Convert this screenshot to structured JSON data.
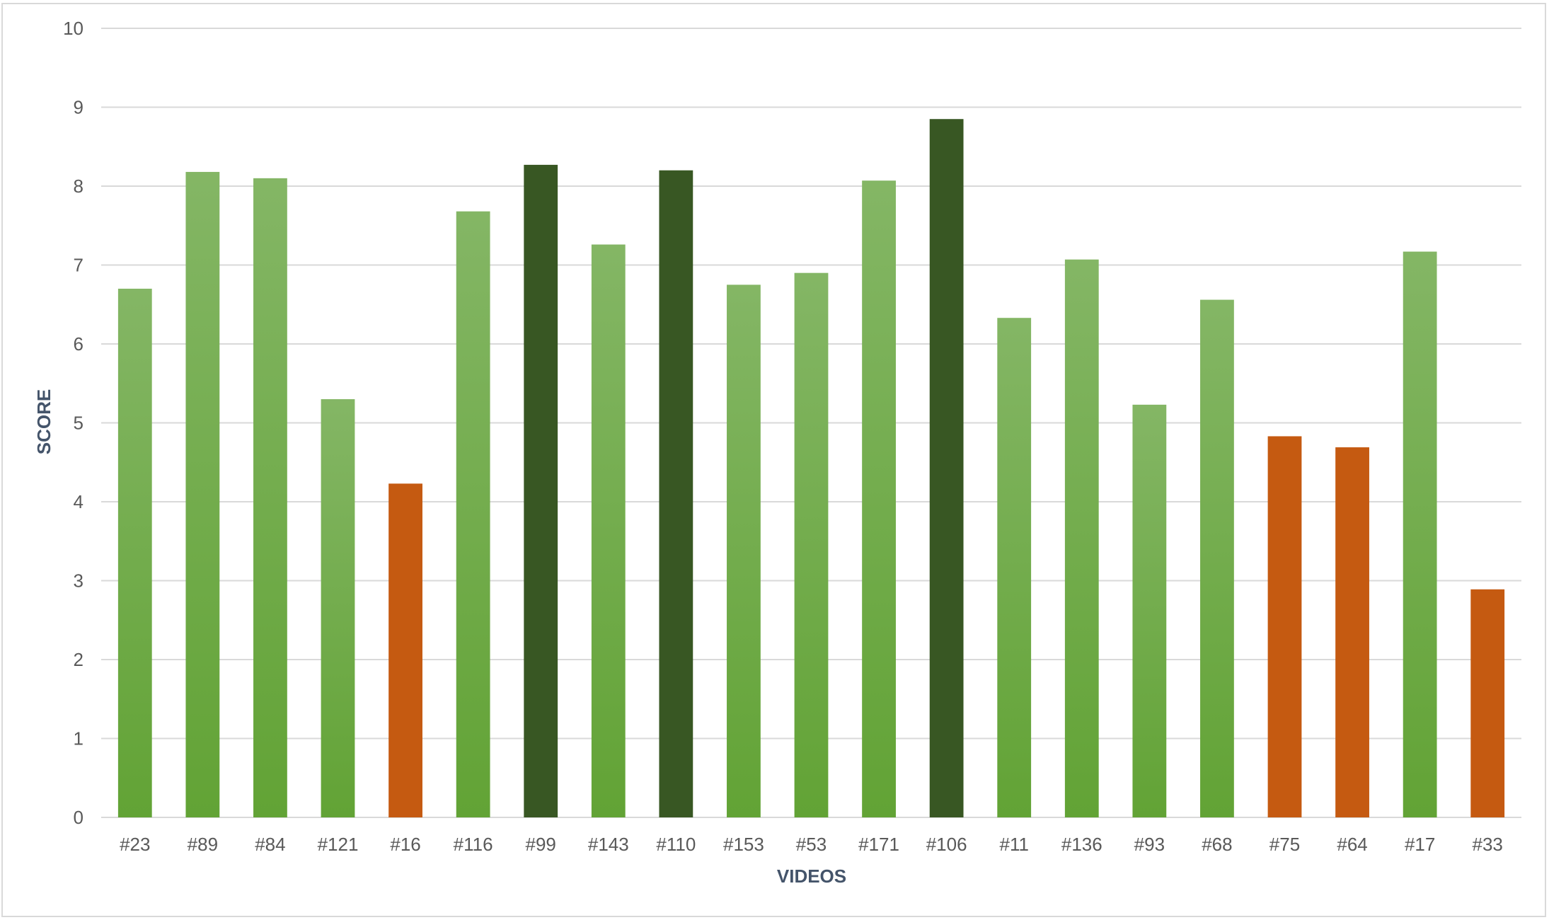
{
  "chart_data": {
    "type": "bar",
    "xlabel": "VIDEOS",
    "ylabel": "SCORE",
    "ylim": [
      0,
      10
    ],
    "yticks": [
      0,
      1,
      2,
      3,
      4,
      5,
      6,
      7,
      8,
      9,
      10
    ],
    "grid": true,
    "categories": [
      "#23",
      "#89",
      "#84",
      "#121",
      "#16",
      "#116",
      "#99",
      "#143",
      "#110",
      "#153",
      "#53",
      "#171",
      "#106",
      "#11",
      "#136",
      "#93",
      "#68",
      "#75",
      "#64",
      "#17",
      "#33"
    ],
    "values": [
      6.7,
      8.18,
      8.1,
      5.3,
      4.23,
      7.68,
      8.27,
      7.26,
      8.2,
      6.75,
      6.9,
      8.07,
      8.85,
      6.33,
      7.07,
      5.23,
      6.56,
      4.83,
      4.69,
      7.17,
      2.89
    ],
    "bar_groups": [
      "light",
      "light",
      "light",
      "light",
      "orange",
      "light",
      "dark",
      "light",
      "dark",
      "light",
      "light",
      "light",
      "dark",
      "light",
      "light",
      "light",
      "light",
      "orange",
      "orange",
      "light",
      "orange"
    ],
    "colors": {
      "light_top": "#84b665",
      "light_bottom": "#62a335",
      "dark": "#385723",
      "orange": "#c55a11",
      "grid": "#d9d9d9"
    }
  }
}
